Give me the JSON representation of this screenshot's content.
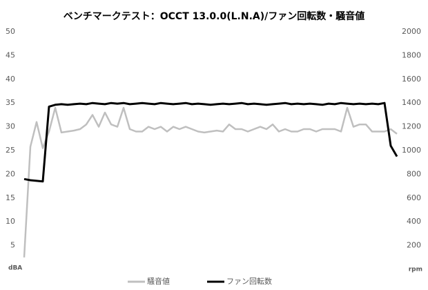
{
  "chart_data": {
    "type": "line",
    "title": "ベンチマークテスト：OCCT 13.0.0(L.N.A)/ファン回転数・騒音値",
    "y_label": "dBA",
    "y2_label": "rpm",
    "ylim": [
      0,
      50
    ],
    "yticks": [
      5,
      10,
      15,
      20,
      25,
      30,
      35,
      40,
      45,
      50
    ],
    "y2lim": [
      0,
      2000
    ],
    "y2ticks": [
      200,
      400,
      600,
      800,
      1000,
      1200,
      1400,
      1600,
      1800,
      2000
    ],
    "grid": false,
    "legend": "bottom",
    "series": [
      {
        "name": "騒音値",
        "color": "#bfbfbf",
        "values": [
          2.5,
          25.8,
          31,
          25.5,
          29,
          34,
          28.8,
          29,
          29.2,
          29.5,
          30.5,
          32.5,
          30,
          33,
          30.5,
          30,
          34,
          29.5,
          29,
          29,
          30,
          29.5,
          30,
          29,
          30,
          29.5,
          30,
          29.5,
          29,
          28.8,
          29,
          29.2,
          29,
          30.5,
          29.5,
          29.5,
          29,
          29.5,
          30,
          29.5,
          30.5,
          29,
          29.5,
          29,
          29,
          29.5,
          29.5,
          29,
          29.5,
          29.5,
          29.5,
          29,
          34,
          30,
          30.5,
          30.5,
          29,
          29,
          29,
          29.5,
          28.5
        ]
      },
      {
        "name": "ファン回転数",
        "color": "#000000",
        "axis": "y2",
        "values": [
          760,
          750,
          745,
          740,
          1370,
          1385,
          1390,
          1385,
          1390,
          1395,
          1390,
          1400,
          1395,
          1390,
          1400,
          1395,
          1400,
          1390,
          1395,
          1400,
          1395,
          1390,
          1400,
          1395,
          1390,
          1395,
          1400,
          1390,
          1395,
          1390,
          1385,
          1390,
          1395,
          1390,
          1395,
          1400,
          1390,
          1395,
          1390,
          1385,
          1390,
          1395,
          1400,
          1390,
          1395,
          1390,
          1395,
          1390,
          1385,
          1395,
          1390,
          1400,
          1395,
          1390,
          1395,
          1390,
          1395,
          1390,
          1400,
          1040,
          950
        ]
      }
    ]
  }
}
